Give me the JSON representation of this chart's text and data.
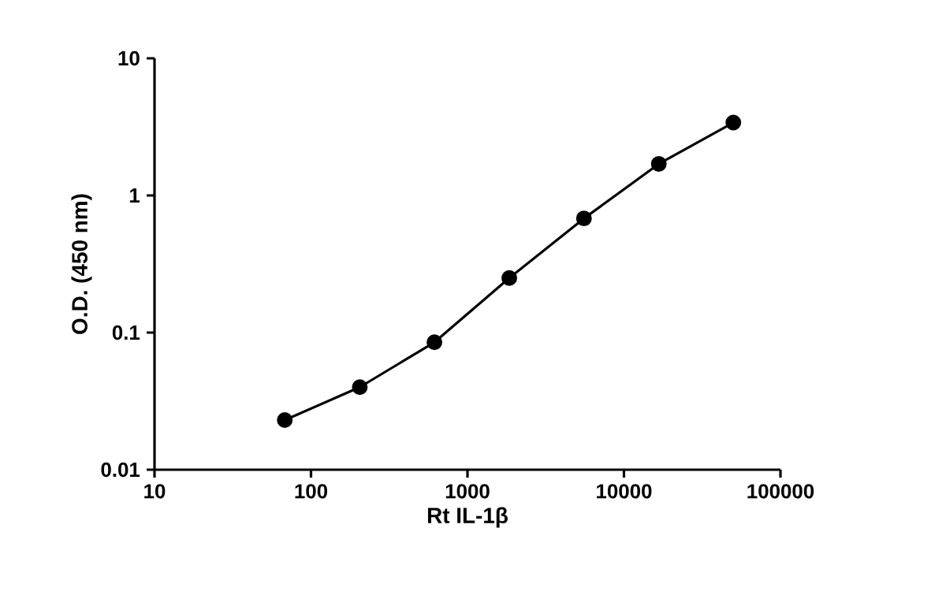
{
  "chart_data": {
    "type": "line",
    "xlabel": "Rt IL-1β",
    "ylabel": "O.D. (450 nm)",
    "log": "xy",
    "marker": "circle",
    "line_style": "solid",
    "x": [
      68,
      205,
      615,
      1850,
      5550,
      16700,
      50000
    ],
    "series": [
      {
        "color": "#000000",
        "values": [
          0.023,
          0.04,
          0.085,
          0.25,
          0.68,
          1.7,
          3.4
        ]
      }
    ],
    "xlim": [
      10,
      100000
    ],
    "ylim": [
      0.01,
      10
    ],
    "xticks": [
      10,
      100,
      1000,
      10000,
      100000
    ],
    "yticks": [
      0.01,
      0.1,
      1,
      10
    ]
  }
}
